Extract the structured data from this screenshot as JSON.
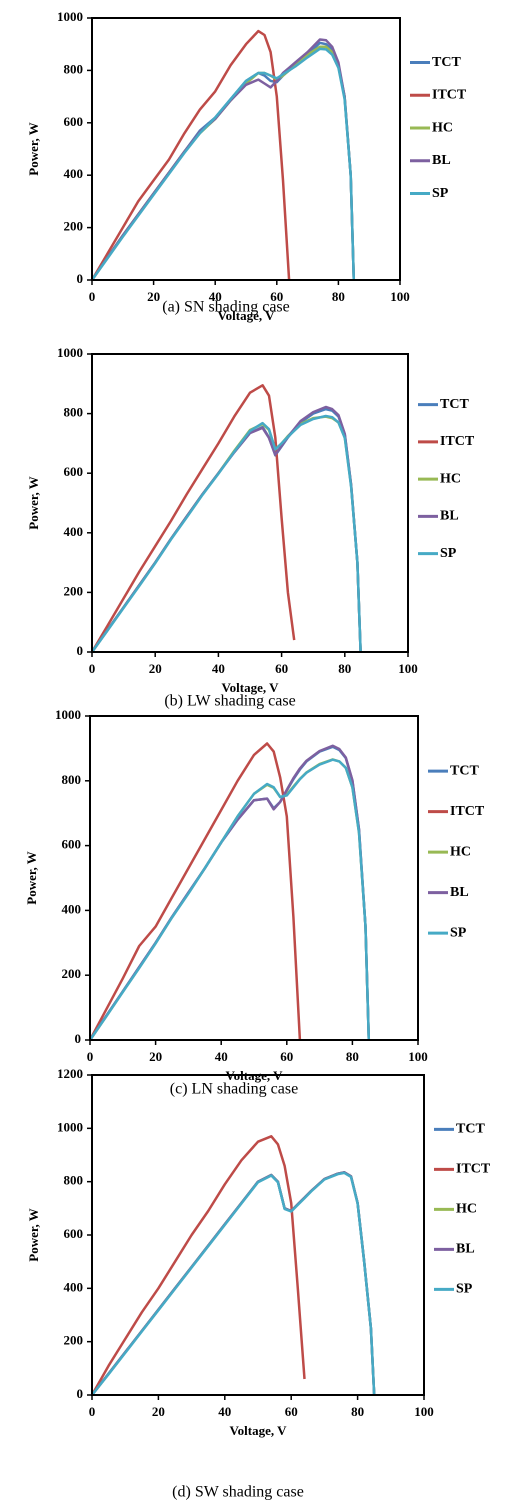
{
  "chart_data": [
    {
      "type": "line",
      "caption": "(a) SN shading case",
      "xlabel": "Voltage, V",
      "ylabel": "Power, W",
      "xlim": [
        0,
        100
      ],
      "xticks": [
        0,
        20,
        40,
        60,
        80,
        100
      ],
      "ylim": [
        0,
        1000
      ],
      "yticks": [
        0,
        200,
        400,
        600,
        800,
        1000
      ],
      "x": [
        0,
        5,
        10,
        15,
        20,
        25,
        30,
        35,
        40,
        45,
        50,
        54,
        56,
        58,
        60,
        62,
        64,
        66,
        70,
        74,
        76,
        78,
        80,
        82,
        84,
        85
      ],
      "series": [
        {
          "name": "TCT",
          "color": "#4a7ebb",
          "values": [
            0,
            85,
            170,
            250,
            330,
            410,
            490,
            570,
            620,
            690,
            760,
            790,
            780,
            760,
            755,
            780,
            800,
            820,
            860,
            905,
            900,
            880,
            820,
            700,
            400,
            0
          ]
        },
        {
          "name": "ITCT",
          "color": "#be4b48",
          "values": [
            0,
            100,
            200,
            300,
            380,
            460,
            560,
            650,
            720,
            820,
            900,
            950,
            935,
            870,
            700,
            380,
            0,
            null,
            null,
            null,
            null,
            null,
            null,
            null,
            null,
            null
          ]
        },
        {
          "name": "HC",
          "color": "#98b954",
          "values": [
            0,
            85,
            170,
            250,
            330,
            410,
            490,
            560,
            615,
            685,
            750,
            790,
            790,
            780,
            765,
            780,
            800,
            820,
            860,
            890,
            890,
            870,
            815,
            700,
            400,
            0
          ]
        },
        {
          "name": "BL",
          "color": "#7d60a0",
          "values": [
            0,
            85,
            170,
            250,
            330,
            410,
            490,
            565,
            615,
            685,
            745,
            765,
            750,
            735,
            760,
            790,
            810,
            830,
            870,
            918,
            915,
            890,
            830,
            700,
            400,
            0
          ]
        },
        {
          "name": "SP",
          "color": "#46aac5",
          "values": [
            0,
            82,
            165,
            245,
            325,
            405,
            485,
            560,
            620,
            690,
            760,
            790,
            790,
            780,
            770,
            785,
            800,
            815,
            850,
            882,
            880,
            860,
            810,
            690,
            400,
            0
          ]
        }
      ]
    },
    {
      "type": "line",
      "caption": "(b) LW shading case",
      "xlabel": "Voltage, V",
      "ylabel": "Power, W",
      "xlim": [
        0,
        100
      ],
      "xticks": [
        0,
        20,
        40,
        60,
        80,
        100
      ],
      "ylim": [
        0,
        1000
      ],
      "yticks": [
        0,
        200,
        400,
        600,
        800,
        1000
      ],
      "x": [
        0,
        5,
        10,
        15,
        20,
        25,
        30,
        35,
        40,
        45,
        50,
        54,
        56,
        58,
        60,
        62,
        64,
        66,
        70,
        74,
        76,
        78,
        80,
        82,
        84,
        85
      ],
      "series": [
        {
          "name": "TCT",
          "color": "#4a7ebb",
          "values": [
            0,
            75,
            150,
            225,
            300,
            380,
            455,
            530,
            600,
            670,
            735,
            755,
            720,
            660,
            690,
            720,
            745,
            770,
            800,
            815,
            810,
            790,
            730,
            560,
            300,
            0
          ]
        },
        {
          "name": "ITCT",
          "color": "#be4b48",
          "values": [
            0,
            90,
            180,
            270,
            355,
            440,
            530,
            615,
            700,
            790,
            870,
            895,
            860,
            720,
            450,
            200,
            40,
            null,
            null,
            null,
            null,
            null,
            null,
            null,
            null,
            null
          ]
        },
        {
          "name": "HC",
          "color": "#98b954",
          "values": [
            0,
            75,
            150,
            225,
            300,
            380,
            455,
            530,
            600,
            675,
            745,
            765,
            745,
            680,
            700,
            725,
            745,
            765,
            785,
            790,
            785,
            770,
            720,
            560,
            300,
            0
          ]
        },
        {
          "name": "BL",
          "color": "#7d60a0",
          "values": [
            0,
            75,
            150,
            225,
            300,
            380,
            455,
            530,
            600,
            670,
            735,
            752,
            718,
            662,
            692,
            722,
            748,
            775,
            805,
            822,
            815,
            795,
            732,
            562,
            300,
            0
          ]
        },
        {
          "name": "SP",
          "color": "#46aac5",
          "values": [
            0,
            73,
            148,
            222,
            298,
            378,
            452,
            528,
            598,
            672,
            742,
            768,
            748,
            680,
            700,
            722,
            742,
            762,
            782,
            792,
            788,
            770,
            718,
            555,
            300,
            0
          ]
        }
      ]
    },
    {
      "type": "line",
      "caption": "(c) LN shading case",
      "xlabel": "Voltage, V",
      "ylabel": "Power, W",
      "xlim": [
        0,
        100
      ],
      "xticks": [
        0,
        20,
        40,
        60,
        80,
        100
      ],
      "ylim": [
        0,
        1000
      ],
      "yticks": [
        0,
        200,
        400,
        600,
        800,
        1000
      ],
      "x": [
        0,
        5,
        10,
        15,
        20,
        25,
        30,
        35,
        40,
        45,
        50,
        54,
        56,
        58,
        60,
        62,
        64,
        66,
        70,
        74,
        76,
        78,
        80,
        82,
        84,
        85
      ],
      "series": [
        {
          "name": "TCT",
          "color": "#4a7ebb",
          "values": [
            0,
            75,
            150,
            225,
            300,
            380,
            455,
            530,
            610,
            680,
            740,
            745,
            715,
            735,
            770,
            805,
            835,
            860,
            890,
            905,
            895,
            870,
            800,
            650,
            350,
            0
          ]
        },
        {
          "name": "ITCT",
          "color": "#be4b48",
          "values": [
            0,
            95,
            190,
            290,
            350,
            440,
            530,
            620,
            710,
            800,
            880,
            915,
            890,
            810,
            690,
            380,
            0,
            null,
            null,
            null,
            null,
            null,
            null,
            null,
            null,
            null
          ]
        },
        {
          "name": "HC",
          "color": "#98b954",
          "values": [
            0,
            74,
            149,
            223,
            299,
            379,
            453,
            530,
            610,
            690,
            760,
            788,
            778,
            750,
            757,
            782,
            806,
            826,
            852,
            866,
            860,
            840,
            780,
            640,
            350,
            0
          ]
        },
        {
          "name": "BL",
          "color": "#7d60a0",
          "values": [
            0,
            75,
            150,
            225,
            300,
            380,
            455,
            530,
            610,
            680,
            740,
            745,
            712,
            735,
            772,
            808,
            838,
            862,
            892,
            908,
            898,
            872,
            802,
            650,
            350,
            0
          ]
        },
        {
          "name": "SP",
          "color": "#46aac5",
          "values": [
            0,
            73,
            148,
            222,
            298,
            378,
            452,
            530,
            610,
            690,
            760,
            790,
            780,
            750,
            755,
            780,
            805,
            825,
            850,
            865,
            860,
            840,
            780,
            640,
            350,
            0
          ]
        }
      ]
    },
    {
      "type": "line",
      "caption": "(d) SW shading case",
      "xlabel": "Voltage, V",
      "ylabel": "Power, W",
      "xlim": [
        0,
        100
      ],
      "xticks": [
        0,
        20,
        40,
        60,
        80,
        100
      ],
      "ylim": [
        0,
        1200
      ],
      "yticks": [
        0,
        200,
        400,
        600,
        800,
        1000,
        1200
      ],
      "x": [
        0,
        5,
        10,
        15,
        20,
        25,
        30,
        35,
        40,
        45,
        50,
        54,
        56,
        58,
        60,
        62,
        64,
        66,
        70,
        74,
        76,
        78,
        80,
        82,
        84,
        85
      ],
      "series": [
        {
          "name": "TCT",
          "color": "#4a7ebb",
          "values": [
            0,
            80,
            160,
            240,
            320,
            400,
            480,
            560,
            640,
            720,
            800,
            825,
            800,
            700,
            690,
            715,
            740,
            765,
            810,
            830,
            835,
            820,
            720,
            500,
            250,
            0
          ]
        },
        {
          "name": "ITCT",
          "color": "#be4b48",
          "values": [
            0,
            110,
            210,
            310,
            400,
            500,
            600,
            690,
            790,
            880,
            950,
            970,
            940,
            860,
            720,
            400,
            60,
            null,
            null,
            null,
            null,
            null,
            null,
            null,
            null,
            null
          ]
        },
        {
          "name": "HC",
          "color": "#98b954",
          "values": [
            0,
            80,
            160,
            240,
            320,
            400,
            480,
            560,
            640,
            720,
            800,
            825,
            800,
            700,
            690,
            715,
            740,
            765,
            810,
            830,
            835,
            820,
            720,
            500,
            250,
            0
          ]
        },
        {
          "name": "BL",
          "color": "#7d60a0",
          "values": [
            0,
            80,
            160,
            240,
            320,
            400,
            480,
            560,
            640,
            720,
            800,
            825,
            800,
            700,
            690,
            715,
            740,
            765,
            810,
            830,
            835,
            820,
            720,
            500,
            250,
            0
          ]
        },
        {
          "name": "SP",
          "color": "#46aac5",
          "values": [
            0,
            78,
            158,
            238,
            318,
            398,
            478,
            558,
            638,
            718,
            798,
            823,
            798,
            698,
            688,
            713,
            738,
            763,
            808,
            828,
            833,
            818,
            718,
            498,
            250,
            0
          ]
        }
      ]
    }
  ]
}
